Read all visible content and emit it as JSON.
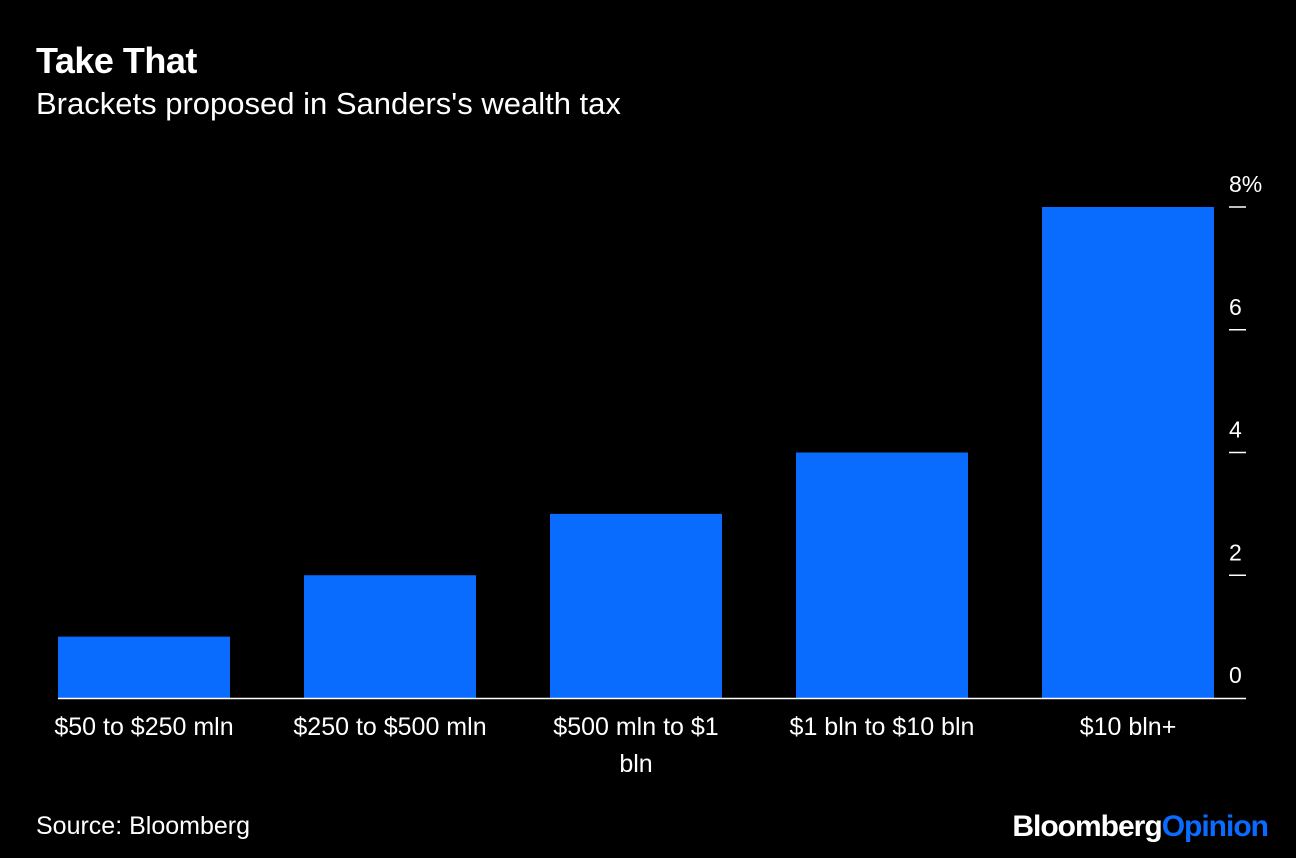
{
  "header": {
    "title": "Take That",
    "subtitle": "Brackets proposed in Sanders's wealth tax"
  },
  "footer": {
    "source": "Source: Bloomberg",
    "brand_part1": "Bloomberg",
    "brand_part2": "Opinion"
  },
  "colors": {
    "background": "#000000",
    "bar": "#0a6cff",
    "text": "#ffffff",
    "axis": "#ffffff"
  },
  "chart_data": {
    "type": "bar",
    "categories": [
      "$50 to $250 mln",
      "$250 to $500 mln",
      "$500 mln to $1 bln",
      "$1 bln to $10 bln",
      "$10 bln+"
    ],
    "values": [
      1,
      2,
      3,
      4,
      8
    ],
    "title": "Take That",
    "subtitle": "Brackets proposed in Sanders's wealth tax",
    "xlabel": "",
    "ylabel": "",
    "ylim": [
      0,
      8
    ],
    "yticks": [
      0,
      2,
      4,
      6,
      8
    ],
    "ytick_labels": [
      "0",
      "2",
      "4",
      "6",
      "8%"
    ],
    "y_axis_side": "right",
    "grid": false,
    "legend": "none"
  }
}
